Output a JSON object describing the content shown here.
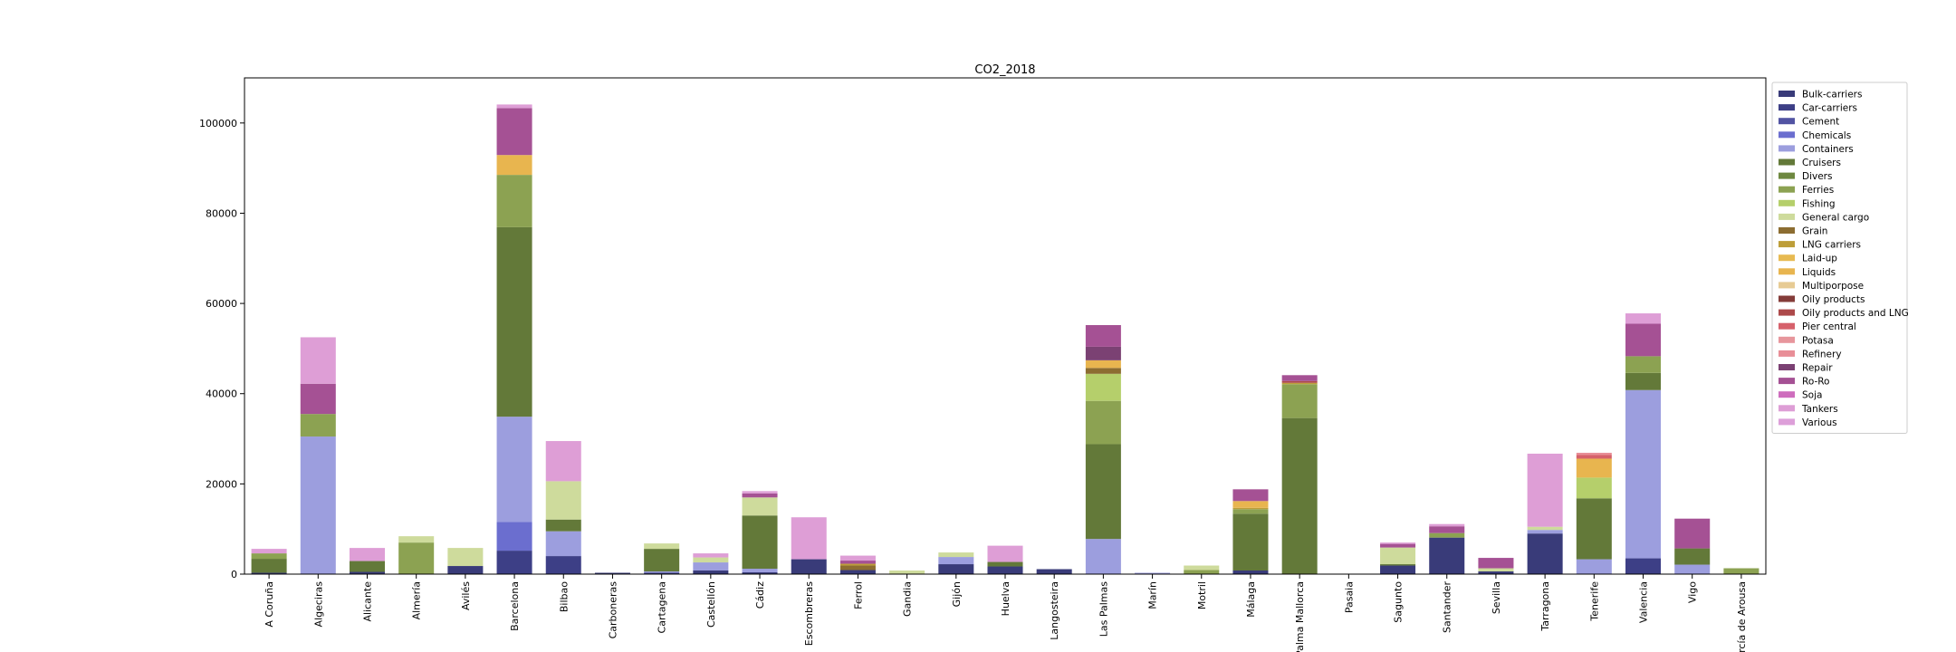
{
  "chart_data": {
    "type": "bar",
    "stacked": true,
    "title": "CO2_2018",
    "xlabel": "",
    "ylabel": "",
    "ylim": [
      0,
      110000
    ],
    "yticks": [
      0,
      20000,
      40000,
      60000,
      80000,
      100000
    ],
    "ytick_labels": [
      "0",
      "20000",
      "40000",
      "60000",
      "80000",
      "100000"
    ],
    "grid": false,
    "legend_position": "right",
    "categories": [
      "A Coruña",
      "Algeciras",
      "Alicante",
      "Almería",
      "Avilés",
      "Barcelona",
      "Bilbao",
      "Carboneras",
      "Cartagena",
      "Castellón",
      "Cádiz",
      "Escombreras",
      "Ferrol",
      "Gandia",
      "Gijón",
      "Huelva",
      "Langosteira",
      "Las Palmas",
      "Marín",
      "Motril",
      "Málaga",
      "Palma Mallorca",
      "Pasaia",
      "Sagunto",
      "Santander",
      "Sevilla",
      "Tarragona",
      "Tenerife",
      "Valencia",
      "Vigo",
      "Vilagarcía de Arousa"
    ],
    "series": [
      {
        "name": "Bulk-carriers",
        "color": "#393b79",
        "values": [
          300,
          0,
          500,
          0,
          1800,
          0,
          0,
          300,
          300,
          800,
          400,
          3300,
          900,
          0,
          2200,
          1700,
          1100,
          0,
          0,
          0,
          800,
          0,
          0,
          1900,
          8100,
          600,
          9000,
          0,
          0,
          0,
          0
        ]
      },
      {
        "name": "Car-carriers",
        "color": "#3d3f86",
        "values": [
          0,
          0,
          0,
          0,
          0,
          5200,
          4000,
          0,
          0,
          0,
          0,
          0,
          0,
          0,
          0,
          0,
          0,
          0,
          0,
          0,
          0,
          0,
          0,
          0,
          0,
          0,
          0,
          0,
          3500,
          0,
          0
        ]
      },
      {
        "name": "Cement",
        "color": "#5254a3",
        "values": [
          0,
          0,
          0,
          0,
          0,
          0,
          0,
          0,
          0,
          0,
          0,
          0,
          0,
          0,
          0,
          0,
          0,
          0,
          0,
          0,
          0,
          0,
          0,
          0,
          0,
          0,
          0,
          0,
          0,
          0,
          0
        ]
      },
      {
        "name": "Chemicals",
        "color": "#6b6ecf",
        "values": [
          0,
          0,
          0,
          0,
          0,
          6400,
          0,
          0,
          0,
          0,
          0,
          0,
          0,
          0,
          0,
          0,
          0,
          0,
          0,
          0,
          0,
          0,
          0,
          0,
          0,
          0,
          0,
          0,
          0,
          0,
          0
        ]
      },
      {
        "name": "Containers",
        "color": "#9c9ede",
        "values": [
          0,
          30500,
          0,
          0,
          0,
          23300,
          5500,
          0,
          300,
          1800,
          800,
          0,
          0,
          0,
          1600,
          0,
          0,
          7800,
          300,
          0,
          0,
          0,
          0,
          0,
          0,
          0,
          800,
          3300,
          37300,
          2100,
          0
        ]
      },
      {
        "name": "Cruisers",
        "color": "#637939",
        "values": [
          3100,
          0,
          2400,
          0,
          0,
          42000,
          2600,
          0,
          5000,
          0,
          11800,
          0,
          0,
          0,
          0,
          1000,
          0,
          21000,
          0,
          0,
          12600,
          34600,
          0,
          300,
          0,
          0,
          0,
          13500,
          3800,
          3600,
          0
        ]
      },
      {
        "name": "Divers",
        "color": "#6e8840",
        "values": [
          0,
          0,
          0,
          0,
          0,
          0,
          0,
          0,
          0,
          0,
          0,
          0,
          0,
          0,
          0,
          0,
          0,
          0,
          0,
          0,
          0,
          0,
          0,
          0,
          0,
          0,
          0,
          0,
          0,
          0,
          0
        ]
      },
      {
        "name": "Ferries",
        "color": "#8ca252",
        "values": [
          1200,
          5000,
          0,
          7000,
          0,
          11600,
          0,
          0,
          0,
          0,
          0,
          0,
          0,
          0,
          0,
          0,
          0,
          9600,
          0,
          900,
          1000,
          7500,
          0,
          0,
          1000,
          0,
          0,
          0,
          3700,
          0,
          1300
        ]
      },
      {
        "name": "Fishing",
        "color": "#b5cf6b",
        "values": [
          0,
          0,
          0,
          0,
          0,
          0,
          0,
          0,
          0,
          0,
          0,
          0,
          0,
          0,
          0,
          0,
          0,
          6000,
          0,
          0,
          0,
          0,
          0,
          0,
          0,
          0,
          0,
          4600,
          0,
          0,
          0
        ]
      },
      {
        "name": "General cargo",
        "color": "#cedb9c",
        "values": [
          0,
          0,
          0,
          1400,
          4000,
          0,
          8500,
          0,
          1200,
          1100,
          4000,
          0,
          0,
          800,
          1000,
          0,
          0,
          0,
          0,
          1000,
          0,
          0,
          0,
          3700,
          0,
          700,
          700,
          0,
          0,
          0,
          0
        ]
      },
      {
        "name": "Grain",
        "color": "#8c6d31",
        "values": [
          0,
          0,
          0,
          0,
          0,
          0,
          0,
          0,
          0,
          0,
          0,
          0,
          1000,
          0,
          0,
          0,
          0,
          1300,
          0,
          0,
          0,
          0,
          0,
          0,
          0,
          0,
          0,
          0,
          0,
          0,
          0
        ]
      },
      {
        "name": "LNG carriers",
        "color": "#bd9e39",
        "values": [
          0,
          0,
          0,
          0,
          0,
          0,
          0,
          0,
          0,
          0,
          0,
          0,
          400,
          0,
          0,
          0,
          0,
          0,
          0,
          0,
          300,
          300,
          0,
          0,
          0,
          0,
          0,
          0,
          0,
          0,
          0
        ]
      },
      {
        "name": "Laid-up",
        "color": "#e7ba52",
        "values": [
          0,
          0,
          0,
          0,
          0,
          0,
          0,
          0,
          0,
          0,
          0,
          0,
          0,
          0,
          0,
          0,
          0,
          0,
          0,
          0,
          0,
          0,
          0,
          0,
          0,
          0,
          0,
          0,
          0,
          0,
          0
        ]
      },
      {
        "name": "Liquids",
        "color": "#e8b54f",
        "values": [
          0,
          0,
          0,
          0,
          0,
          4400,
          0,
          0,
          0,
          0,
          0,
          0,
          0,
          0,
          0,
          0,
          0,
          1700,
          0,
          0,
          1500,
          0,
          0,
          0,
          0,
          0,
          0,
          4200,
          0,
          0,
          0
        ]
      },
      {
        "name": "Multiporpose",
        "color": "#e7cb94",
        "values": [
          0,
          0,
          0,
          0,
          0,
          0,
          0,
          0,
          0,
          0,
          0,
          0,
          0,
          0,
          0,
          0,
          0,
          0,
          0,
          0,
          0,
          0,
          0,
          0,
          0,
          0,
          0,
          0,
          0,
          0,
          0
        ]
      },
      {
        "name": "Oily products",
        "color": "#843c39",
        "values": [
          0,
          0,
          0,
          0,
          0,
          0,
          0,
          0,
          0,
          0,
          0,
          0,
          0,
          0,
          0,
          0,
          0,
          0,
          0,
          0,
          0,
          0,
          0,
          0,
          0,
          0,
          0,
          0,
          0,
          0,
          0
        ]
      },
      {
        "name": "Oily products and LNG",
        "color": "#ad494a",
        "values": [
          0,
          0,
          0,
          0,
          0,
          0,
          0,
          0,
          0,
          0,
          0,
          0,
          0,
          0,
          0,
          0,
          0,
          0,
          0,
          0,
          0,
          400,
          0,
          0,
          0,
          0,
          0,
          0,
          0,
          0,
          0
        ]
      },
      {
        "name": "Pier central",
        "color": "#d6616b",
        "values": [
          0,
          0,
          0,
          0,
          0,
          0,
          0,
          0,
          0,
          0,
          0,
          0,
          0,
          0,
          0,
          0,
          0,
          0,
          0,
          0,
          0,
          0,
          0,
          0,
          0,
          0,
          0,
          800,
          0,
          0,
          0
        ]
      },
      {
        "name": "Potasa",
        "color": "#e7969c",
        "values": [
          0,
          0,
          0,
          0,
          0,
          0,
          0,
          0,
          0,
          0,
          0,
          0,
          0,
          0,
          0,
          0,
          0,
          0,
          0,
          0,
          0,
          0,
          0,
          0,
          0,
          0,
          0,
          0,
          0,
          0,
          0
        ]
      },
      {
        "name": "Refinery",
        "color": "#e88e97",
        "values": [
          0,
          0,
          0,
          0,
          0,
          0,
          0,
          0,
          0,
          0,
          0,
          0,
          0,
          0,
          0,
          0,
          0,
          0,
          0,
          0,
          0,
          0,
          0,
          0,
          0,
          0,
          0,
          500,
          0,
          0,
          0
        ]
      },
      {
        "name": "Repair",
        "color": "#7b4173",
        "values": [
          0,
          0,
          0,
          0,
          0,
          0,
          0,
          0,
          0,
          0,
          0,
          0,
          0,
          0,
          0,
          0,
          0,
          3000,
          0,
          0,
          0,
          0,
          0,
          0,
          0,
          0,
          0,
          0,
          0,
          0,
          0
        ]
      },
      {
        "name": "Ro-Ro",
        "color": "#a55194",
        "values": [
          0,
          6700,
          0,
          0,
          0,
          10400,
          0,
          0,
          0,
          0,
          900,
          0,
          700,
          0,
          0,
          0,
          0,
          4800,
          0,
          0,
          2600,
          1300,
          0,
          800,
          1500,
          2300,
          0,
          0,
          7200,
          6600,
          0
        ]
      },
      {
        "name": "Soja",
        "color": "#ce6dbd",
        "values": [
          0,
          0,
          0,
          0,
          0,
          0,
          0,
          0,
          0,
          0,
          0,
          0,
          0,
          0,
          0,
          0,
          0,
          0,
          0,
          0,
          0,
          0,
          0,
          0,
          0,
          0,
          0,
          0,
          0,
          0,
          0
        ]
      },
      {
        "name": "Tankers",
        "color": "#de9ed6",
        "values": [
          1000,
          10300,
          2900,
          0,
          0,
          800,
          8900,
          0,
          0,
          900,
          500,
          9300,
          1100,
          0,
          0,
          3600,
          0,
          0,
          0,
          0,
          0,
          0,
          0,
          300,
          500,
          0,
          16200,
          0,
          2300,
          0,
          0
        ]
      },
      {
        "name": "Various",
        "color": "#dd9fd9",
        "values": [
          0,
          0,
          0,
          0,
          0,
          0,
          0,
          0,
          0,
          0,
          0,
          0,
          0,
          0,
          0,
          0,
          0,
          0,
          0,
          0,
          0,
          0,
          0,
          0,
          0,
          0,
          0,
          0,
          0,
          0,
          0
        ]
      }
    ]
  }
}
